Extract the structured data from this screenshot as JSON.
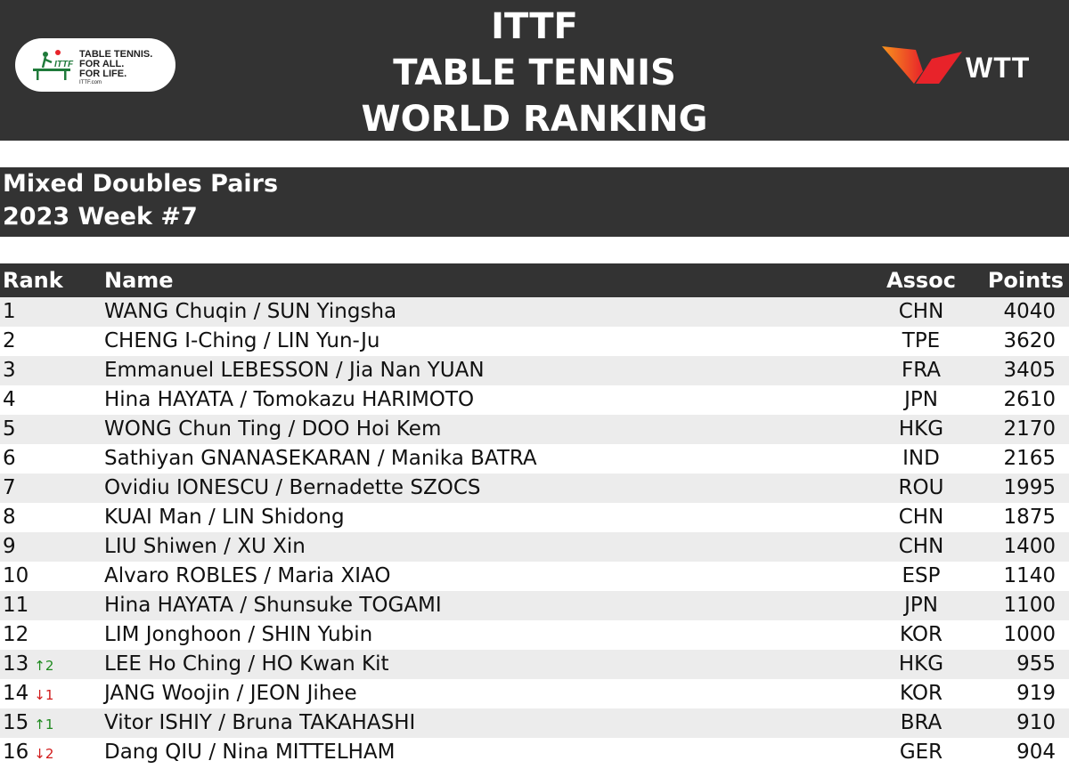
{
  "header": {
    "title_lines": [
      "ITTF",
      "TABLE TENNIS",
      "WORLD RANKING"
    ],
    "ittf_logo": {
      "lines": [
        "TABLE TENNIS.",
        "FOR ALL.",
        "FOR LIFE."
      ],
      "url": "ITTF.com",
      "mark": "ITTF"
    },
    "wtt_logo": {
      "text": "WTT",
      "colors": [
        "#e8232a",
        "#f7941d"
      ]
    }
  },
  "subheader": {
    "line1": "Mixed Doubles Pairs",
    "line2": "2023 Week #7"
  },
  "table": {
    "columns": {
      "rank": "Rank",
      "name": "Name",
      "assoc": "Assoc",
      "points": "Points"
    },
    "rows": [
      {
        "rank": "1",
        "move": "",
        "dir": "",
        "name": "WANG Chuqin / SUN Yingsha",
        "assoc": "CHN",
        "points": "4040"
      },
      {
        "rank": "2",
        "move": "",
        "dir": "",
        "name": "CHENG I-Ching / LIN Yun-Ju",
        "assoc": "TPE",
        "points": "3620"
      },
      {
        "rank": "3",
        "move": "",
        "dir": "",
        "name": "Emmanuel LEBESSON / Jia Nan YUAN",
        "assoc": "FRA",
        "points": "3405"
      },
      {
        "rank": "4",
        "move": "",
        "dir": "",
        "name": "Hina HAYATA / Tomokazu HARIMOTO",
        "assoc": "JPN",
        "points": "2610"
      },
      {
        "rank": "5",
        "move": "",
        "dir": "",
        "name": "WONG Chun Ting / DOO Hoi Kem",
        "assoc": "HKG",
        "points": "2170"
      },
      {
        "rank": "6",
        "move": "",
        "dir": "",
        "name": "Sathiyan GNANASEKARAN / Manika BATRA",
        "assoc": "IND",
        "points": "2165"
      },
      {
        "rank": "7",
        "move": "",
        "dir": "",
        "name": "Ovidiu IONESCU / Bernadette SZOCS",
        "assoc": "ROU",
        "points": "1995"
      },
      {
        "rank": "8",
        "move": "",
        "dir": "",
        "name": "KUAI Man / LIN Shidong",
        "assoc": "CHN",
        "points": "1875"
      },
      {
        "rank": "9",
        "move": "",
        "dir": "",
        "name": "LIU Shiwen / XU Xin",
        "assoc": "CHN",
        "points": "1400"
      },
      {
        "rank": "10",
        "move": "",
        "dir": "",
        "name": "Alvaro ROBLES / Maria XIAO",
        "assoc": "ESP",
        "points": "1140"
      },
      {
        "rank": "11",
        "move": "",
        "dir": "",
        "name": "Hina HAYATA / Shunsuke TOGAMI",
        "assoc": "JPN",
        "points": "1100"
      },
      {
        "rank": "12",
        "move": "",
        "dir": "",
        "name": "LIM Jonghoon / SHIN Yubin",
        "assoc": "KOR",
        "points": "1000"
      },
      {
        "rank": "13",
        "move": "↑2",
        "dir": "up",
        "name": "LEE Ho Ching / HO Kwan Kit",
        "assoc": "HKG",
        "points": "955"
      },
      {
        "rank": "14",
        "move": "↓1",
        "dir": "down",
        "name": "JANG Woojin / JEON Jihee",
        "assoc": "KOR",
        "points": "919"
      },
      {
        "rank": "15",
        "move": "↑1",
        "dir": "up",
        "name": "Vitor ISHIY / Bruna TAKAHASHI",
        "assoc": "BRA",
        "points": "910"
      },
      {
        "rank": "16",
        "move": "↓2",
        "dir": "down",
        "name": "Dang QIU / Nina MITTELHAM",
        "assoc": "GER",
        "points": "904"
      }
    ]
  }
}
